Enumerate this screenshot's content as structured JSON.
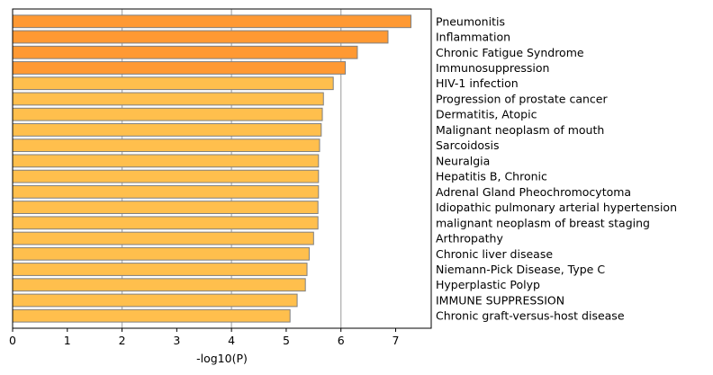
{
  "chart_data": {
    "type": "bar",
    "orientation": "horizontal",
    "categories": [
      "Pneumonitis",
      "Inflammation",
      "Chronic Fatigue Syndrome",
      "Immunosuppression",
      "HIV-1 infection",
      "Progression of prostate cancer",
      "Dermatitis, Atopic",
      "Malignant neoplasm of mouth",
      "Sarcoidosis",
      "Neuralgia",
      "Hepatitis B, Chronic",
      "Adrenal Gland Pheochromocytoma",
      "Idiopathic pulmonary arterial hypertension",
      "malignant neoplasm of breast staging",
      "Arthropathy",
      "Chronic liver disease",
      "Niemann-Pick Disease, Type C",
      "Hyperplastic Polyp",
      "IMMUNE SUPPRESSION",
      "Chronic graft-versus-host disease"
    ],
    "values": [
      7.28,
      6.86,
      6.3,
      6.08,
      5.86,
      5.68,
      5.66,
      5.64,
      5.61,
      5.59,
      5.59,
      5.59,
      5.58,
      5.58,
      5.5,
      5.42,
      5.38,
      5.35,
      5.2,
      5.07
    ],
    "bar_colors": [
      "#ff9933",
      "#ff9933",
      "#ff9933",
      "#ff9933",
      "#ffbf4d",
      "#ffbf4d",
      "#ffbf4d",
      "#ffbf4d",
      "#ffbf4d",
      "#ffbf4d",
      "#ffbf4d",
      "#ffbf4d",
      "#ffbf4d",
      "#ffbf4d",
      "#ffbf4d",
      "#ffbf4d",
      "#ffbf4d",
      "#ffbf4d",
      "#ffbf4d",
      "#ffbf4d"
    ],
    "bar_edge_color": "#7f7f7f",
    "grid_color": "#b0b0b0",
    "xlabel": "-log10(P)",
    "ylabel": "",
    "title": "",
    "xlim": [
      0,
      7.65
    ],
    "xticks": [
      0,
      1,
      2,
      3,
      4,
      5,
      6,
      7
    ],
    "grid_lines_at": [
      2,
      4,
      6
    ],
    "category_labels_side": "right",
    "legend": "none"
  }
}
